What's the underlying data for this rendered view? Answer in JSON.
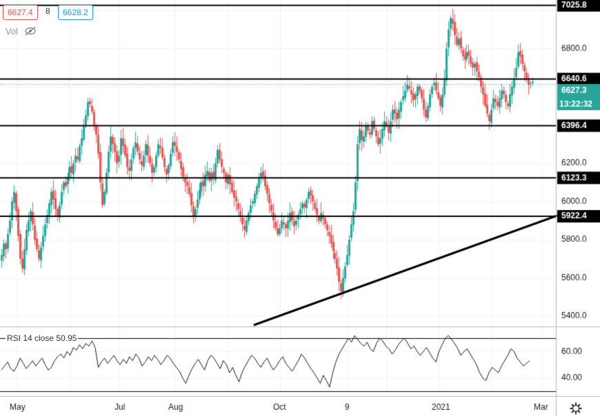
{
  "header": {
    "bid": "6627.4",
    "quantity": "8",
    "ask": "6628.2",
    "volume_label": "Vol",
    "eye_icon": "eye-crossed-icon"
  },
  "rsi": {
    "label": "RSI 14 close",
    "value": "50.95",
    "levels": [
      70,
      30
    ],
    "ticks": [
      "60.00",
      "40.00"
    ],
    "values": [
      46,
      49,
      52,
      47,
      45,
      49,
      55,
      51,
      47,
      50,
      53,
      49,
      52,
      55,
      50,
      46,
      48,
      53,
      56,
      58,
      55,
      60,
      57,
      63,
      61,
      65,
      62,
      66,
      64,
      68,
      63,
      48,
      52,
      55,
      51,
      54,
      57,
      53,
      50,
      54,
      51,
      56,
      53,
      58,
      55,
      49,
      52,
      56,
      53,
      57,
      54,
      50,
      53,
      57,
      55,
      51,
      48,
      45,
      40,
      36,
      42,
      47,
      51,
      54,
      50,
      46,
      53,
      57,
      55,
      51,
      47,
      53,
      50,
      44,
      48,
      42,
      37,
      44,
      49,
      53,
      57,
      55,
      51,
      48,
      52,
      55,
      50,
      46,
      49,
      53,
      56,
      51,
      48,
      45,
      49,
      53,
      58,
      55,
      51,
      47,
      44,
      40,
      36,
      42,
      38,
      33,
      44,
      52,
      58,
      62,
      66,
      70,
      67,
      72,
      69,
      66,
      64,
      67,
      62,
      60,
      66,
      70,
      68,
      64,
      62,
      58,
      61,
      65,
      68,
      70,
      66,
      62,
      64,
      60,
      57,
      60,
      63,
      59,
      55,
      52,
      60,
      65,
      70,
      72,
      69,
      66,
      62,
      57,
      60,
      62,
      58,
      54,
      50,
      44,
      40,
      38,
      44,
      48,
      46,
      44,
      49,
      53,
      57,
      62,
      60,
      55,
      52,
      49,
      51,
      53
    ]
  },
  "chart_data": {
    "type": "candlestick",
    "price_ticks": [
      "6800.0",
      "6200.0",
      "6000.0",
      "5800.0",
      "5600.0",
      "5400.0"
    ],
    "x_ticks": [
      "May",
      "Jul",
      "Aug",
      "Oct",
      "9",
      "2021",
      "Mar"
    ],
    "horizontal_levels": [
      {
        "value": 7025.8,
        "label": "7025.8",
        "style": "black"
      },
      {
        "value": 6640.6,
        "label": "6640.6",
        "style": "black"
      },
      {
        "value": 6396.4,
        "label": "6396.4",
        "style": "black"
      },
      {
        "value": 6123.3,
        "label": "6123.3",
        "style": "black"
      },
      {
        "value": 5922.4,
        "label": "5922.4",
        "style": "black"
      }
    ],
    "current_price": {
      "label": "6627.3",
      "color": "#26a69a"
    },
    "countdown": {
      "label": "13:22:32",
      "color": "#26a69a"
    },
    "trendline": {
      "from": {
        "bar": 126,
        "price": 5340
      },
      "to": {
        "bar": 270,
        "price": 5922.4
      }
    },
    "colors": {
      "up": "#26a69a",
      "down": "#ef5350"
    },
    "closes": [
      5720,
      5780,
      5750,
      5830,
      5900,
      6000,
      6050,
      5950,
      5820,
      5700,
      5650,
      5750,
      5850,
      5900,
      5950,
      5880,
      5800,
      5750,
      5700,
      5760,
      5820,
      5880,
      5930,
      5990,
      6050,
      6010,
      5960,
      5920,
      5980,
      6050,
      6100,
      6080,
      6120,
      6180,
      6150,
      6200,
      6240,
      6220,
      6290,
      6330,
      6400,
      6450,
      6520,
      6510,
      6470,
      6400,
      6350,
      6250,
      6100,
      5980,
      6050,
      6150,
      6260,
      6340,
      6300,
      6260,
      6200,
      6240,
      6330,
      6290,
      6240,
      6180,
      6160,
      6220,
      6280,
      6310,
      6260,
      6220,
      6190,
      6240,
      6300,
      6240,
      6200,
      6150,
      6180,
      6240,
      6300,
      6280,
      6230,
      6180,
      6140,
      6190,
      6250,
      6310,
      6290,
      6260,
      6220,
      6170,
      6130,
      6100,
      6080,
      6040,
      5980,
      5920,
      5960,
      6010,
      6060,
      6100,
      6080,
      6140,
      6160,
      6110,
      6150,
      6120,
      6200,
      6270,
      6220,
      6180,
      6150,
      6100,
      6140,
      6090,
      6050,
      6020,
      6000,
      5960,
      5920,
      5880,
      5850,
      5900,
      5940,
      5980,
      6000,
      6040,
      6080,
      6120,
      6150,
      6130,
      6080,
      6040,
      5990,
      5950,
      5900,
      5860,
      5830,
      5860,
      5900,
      5880,
      5860,
      5900,
      5940,
      5900,
      5870,
      5900,
      5930,
      5960,
      5990,
      5970,
      6010,
      6050,
      6030,
      6000,
      5960,
      5930,
      5900,
      5940,
      5910,
      5880,
      5850,
      5820,
      5780,
      5740,
      5700,
      5650,
      5580,
      5530,
      5600,
      5660,
      5720,
      5800,
      5880,
      5950,
      6100,
      6300,
      6380,
      6320,
      6340,
      6400,
      6370,
      6350,
      6420,
      6380,
      6340,
      6300,
      6330,
      6380,
      6420,
      6400,
      6360,
      6420,
      6480,
      6460,
      6430,
      6480,
      6520,
      6550,
      6580,
      6610,
      6590,
      6560,
      6530,
      6560,
      6600,
      6580,
      6540,
      6480,
      6440,
      6500,
      6560,
      6600,
      6620,
      6580,
      6540,
      6500,
      6560,
      6640,
      6800,
      6900,
      6960,
      6930,
      6870,
      6820,
      6850,
      6800,
      6760,
      6740,
      6780,
      6760,
      6720,
      6700,
      6720,
      6680,
      6650,
      6600,
      6560,
      6500,
      6460,
      6420,
      6480,
      6540,
      6520,
      6500,
      6540,
      6580,
      6560,
      6520,
      6500,
      6560,
      6600,
      6640,
      6700,
      6780,
      6760,
      6720,
      6680,
      6640,
      6610,
      6620,
      6627
    ]
  }
}
